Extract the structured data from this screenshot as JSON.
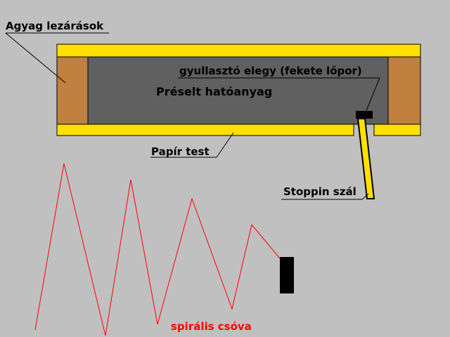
{
  "labels": {
    "clay_plugs": "Agyag lezárások",
    "igniter_mix": "gyullasztó elegy (fekete lőpor)",
    "pressed_charge": "Préselt hatóanyag",
    "paper_body": "Papír test",
    "fuse": "Stoppin szál",
    "spiral_trail": "spirális csóva"
  },
  "colors": {
    "background": "#c0c0c0",
    "paper_tube": "#ffe000",
    "clay": "#c08040",
    "charge": "#606060",
    "outline": "#000000",
    "trail": "#ff0000",
    "trail_label": "#ff0000",
    "fuse": "#ffe000"
  }
}
